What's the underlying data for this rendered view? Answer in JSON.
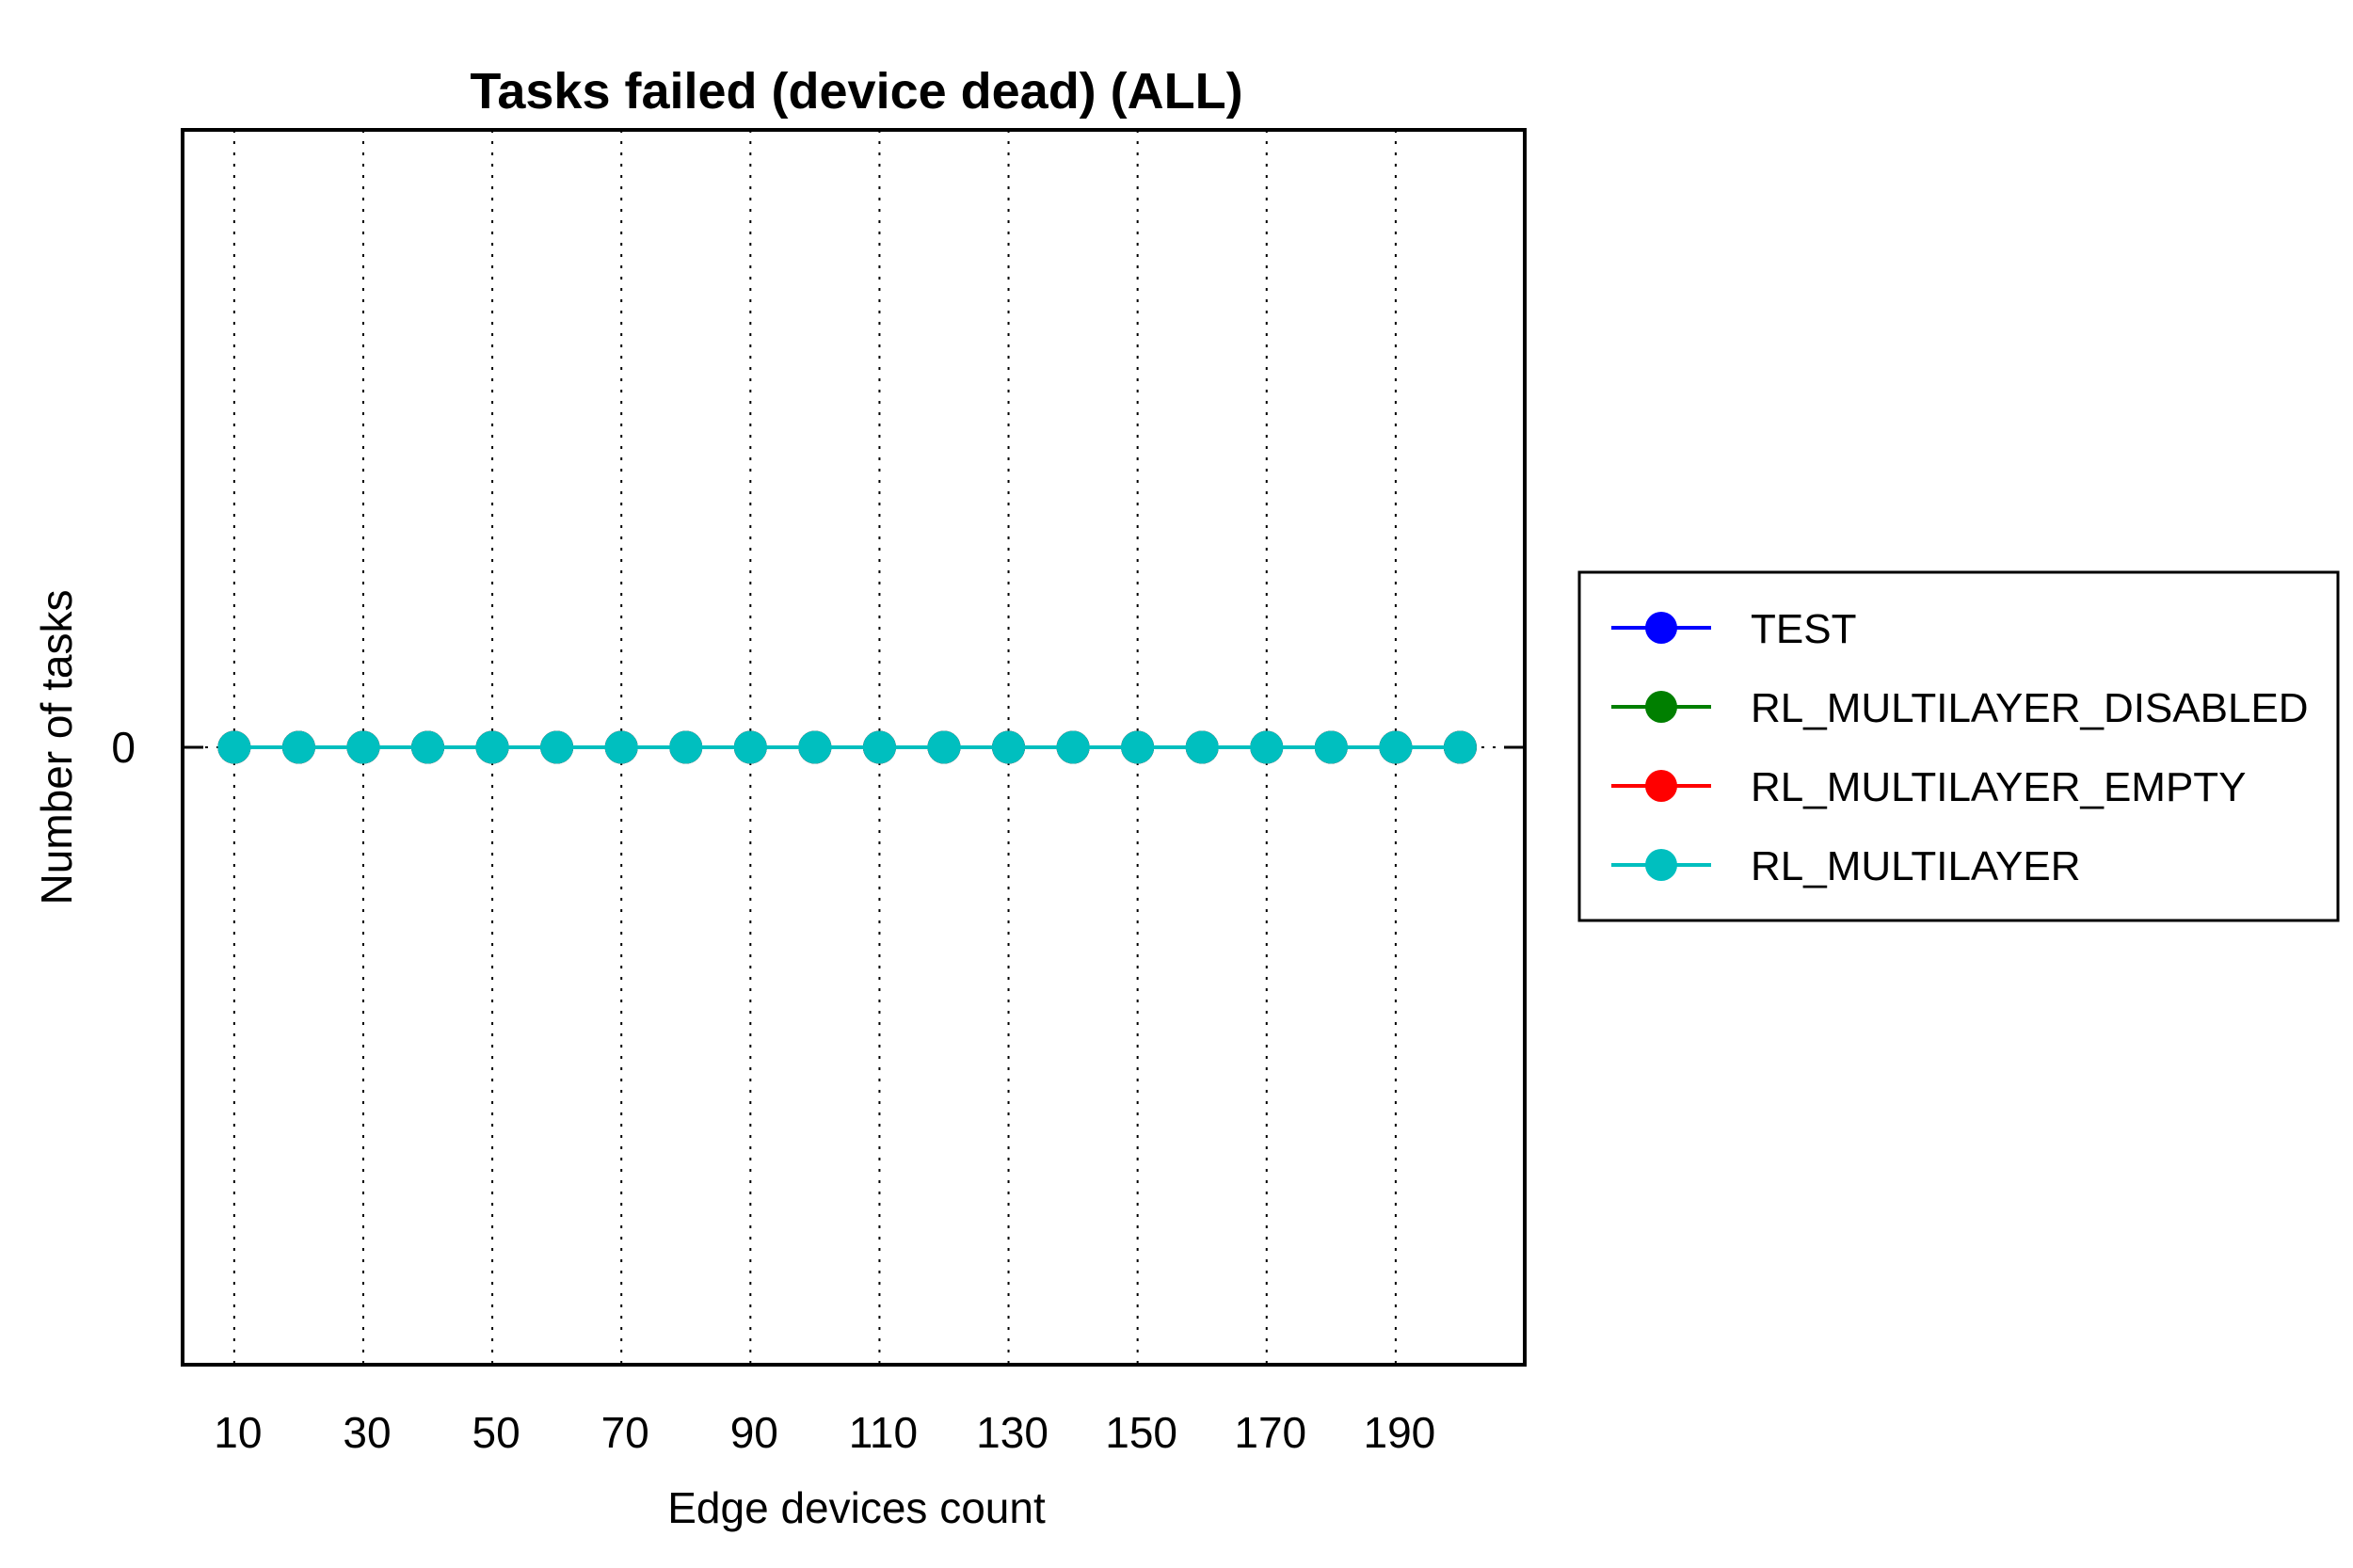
{
  "chart_data": {
    "type": "line",
    "title": "Tasks failed (device dead) (ALL)",
    "xlabel": "Edge devices count",
    "ylabel": "Number of tasks",
    "x": [
      10,
      20,
      30,
      40,
      50,
      60,
      70,
      80,
      90,
      100,
      110,
      120,
      130,
      140,
      150,
      160,
      170,
      180,
      190,
      200
    ],
    "xticks": [
      10,
      30,
      50,
      70,
      90,
      110,
      130,
      150,
      170,
      190
    ],
    "yticks": [
      0
    ],
    "xlim": [
      2,
      210
    ],
    "ylim": [
      -1,
      1
    ],
    "grid": "x-dotted",
    "legend_position": "right",
    "series": [
      {
        "name": "TEST",
        "color": "#0000ff",
        "values": [
          0,
          0,
          0,
          0,
          0,
          0,
          0,
          0,
          0,
          0,
          0,
          0,
          0,
          0,
          0,
          0,
          0,
          0,
          0,
          0
        ]
      },
      {
        "name": "RL_MULTILAYER_DISABLED",
        "color": "#007f00",
        "values": [
          0,
          0,
          0,
          0,
          0,
          0,
          0,
          0,
          0,
          0,
          0,
          0,
          0,
          0,
          0,
          0,
          0,
          0,
          0,
          0
        ]
      },
      {
        "name": "RL_MULTILAYER_EMPTY",
        "color": "#ff0000",
        "values": [
          0,
          0,
          0,
          0,
          0,
          0,
          0,
          0,
          0,
          0,
          0,
          0,
          0,
          0,
          0,
          0,
          0,
          0,
          0,
          0
        ]
      },
      {
        "name": "RL_MULTILAYER",
        "color": "#00bfbf",
        "values": [
          0,
          0,
          0,
          0,
          0,
          0,
          0,
          0,
          0,
          0,
          0,
          0,
          0,
          0,
          0,
          0,
          0,
          0,
          0,
          0
        ]
      }
    ]
  }
}
